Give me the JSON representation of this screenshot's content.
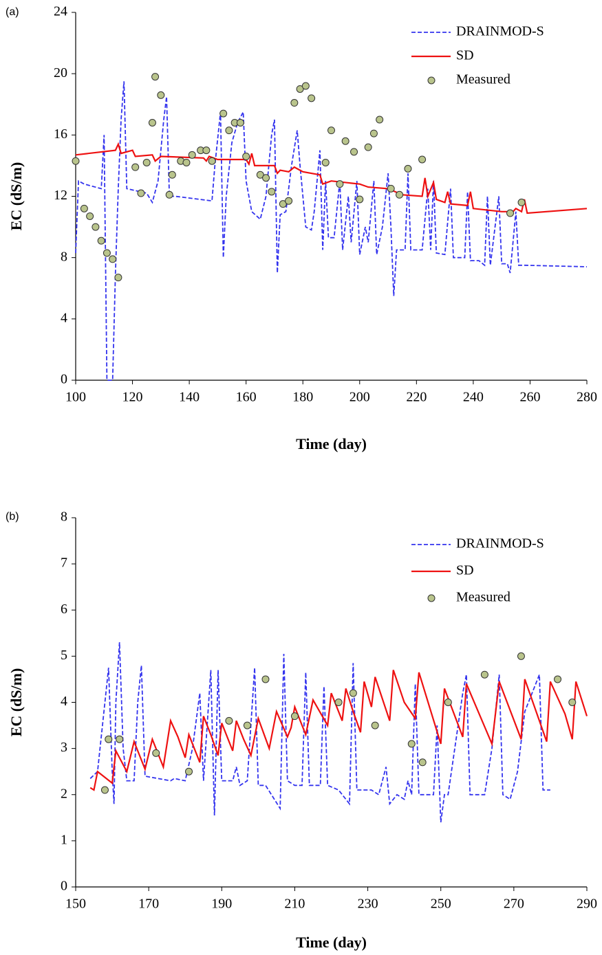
{
  "chart_data": [
    {
      "type": "line",
      "label": "(a)",
      "xlabel": "Time (day)",
      "ylabel": "EC (dS/m)",
      "legend": "upper right",
      "xlim": [
        100,
        280
      ],
      "xticks": [
        100,
        120,
        140,
        160,
        180,
        200,
        220,
        240,
        260,
        280
      ],
      "ylim": [
        0,
        24
      ],
      "yticks": [
        0,
        4,
        8,
        12,
        16,
        20,
        24
      ],
      "series": [
        {
          "name": "DRAINMOD-S",
          "color": "#3333ee",
          "style": "dashed",
          "x": [
            100,
            101,
            103,
            109,
            110,
            111,
            113,
            114,
            115,
            116,
            117,
            118,
            125,
            127,
            129,
            131,
            132,
            133,
            135,
            148,
            149,
            151,
            152,
            153,
            155,
            157,
            159,
            160,
            162,
            165,
            167,
            169,
            170,
            171,
            172,
            174,
            176,
            178,
            179,
            181,
            183,
            184,
            186,
            187,
            188,
            189,
            191,
            193,
            194,
            196,
            197,
            199,
            200,
            202,
            203,
            205,
            206,
            208,
            210,
            211,
            212,
            213,
            216,
            217,
            218,
            222,
            224,
            225,
            226,
            227,
            230,
            232,
            233,
            237,
            238,
            239,
            242,
            244,
            245,
            246,
            249,
            250,
            252,
            253,
            255,
            256,
            258,
            280
          ],
          "values": [
            8.3,
            13,
            12.8,
            12.5,
            16,
            0,
            0,
            7,
            12.5,
            17,
            19.5,
            12.5,
            12.2,
            11.6,
            13,
            17,
            18.5,
            12,
            12,
            11.7,
            14,
            17.5,
            8,
            12,
            15.5,
            16.8,
            17.5,
            13,
            11,
            10.5,
            12,
            16,
            17,
            7,
            10.8,
            11,
            14,
            16.3,
            14,
            10,
            9.8,
            11,
            15,
            8.5,
            13,
            9.3,
            9.3,
            13,
            8.5,
            12,
            9,
            13,
            8.2,
            10,
            9,
            13,
            8.2,
            10,
            13.5,
            10,
            5.5,
            8.5,
            8.5,
            13.5,
            8.5,
            8.5,
            12.5,
            8.5,
            13,
            8.3,
            8.2,
            12.5,
            8,
            8,
            12.3,
            7.8,
            7.8,
            7.5,
            12,
            7.5,
            12,
            7.6,
            7.6,
            7,
            11,
            7.5,
            7.5,
            7.4
          ]
        },
        {
          "name": "SD",
          "color": "#ee1111",
          "style": "solid",
          "x": [
            100,
            114,
            115,
            116,
            120,
            121,
            127,
            128,
            130,
            145,
            146,
            147,
            150,
            160,
            161,
            162,
            163,
            170,
            171,
            172,
            175,
            177,
            180,
            186,
            187,
            190,
            200,
            203,
            210,
            215,
            222,
            223,
            224,
            226,
            227,
            230,
            231,
            232,
            238,
            239,
            240,
            250,
            254,
            255,
            257,
            258,
            259,
            280
          ],
          "values": [
            14.7,
            15,
            15.4,
            14.8,
            15,
            14.6,
            14.7,
            14.3,
            14.6,
            14.5,
            14.3,
            14.6,
            14.4,
            14.4,
            14.1,
            14.8,
            14,
            14,
            13.5,
            13.7,
            13.6,
            13.9,
            13.6,
            13.4,
            12.8,
            13,
            12.8,
            12.6,
            12.5,
            12.1,
            12,
            13.2,
            12,
            12.9,
            11.8,
            11.6,
            12.3,
            11.5,
            11.4,
            12.3,
            11.2,
            11,
            11,
            11.2,
            11,
            11.8,
            10.9,
            11.2
          ]
        },
        {
          "name": "Measured",
          "color": "#b9c48c",
          "style": "marker",
          "x": [
            100,
            103,
            105,
            107,
            109,
            111,
            113,
            115,
            121,
            123,
            125,
            127,
            128,
            130,
            133,
            134,
            137,
            139,
            141,
            144,
            146,
            148,
            152,
            154,
            156,
            158,
            160,
            165,
            167,
            169,
            173,
            175,
            177,
            179,
            181,
            183,
            188,
            190,
            193,
            195,
            198,
            200,
            203,
            205,
            207,
            211,
            214,
            217,
            222,
            253,
            257
          ],
          "values": [
            14.3,
            11.2,
            10.7,
            10,
            9.1,
            8.3,
            7.9,
            6.7,
            13.9,
            12.2,
            14.2,
            16.8,
            19.8,
            18.6,
            12.1,
            13.4,
            14.3,
            14.2,
            14.7,
            15,
            15,
            14.3,
            17.4,
            16.3,
            16.8,
            16.8,
            14.6,
            13.4,
            13.2,
            12.3,
            11.5,
            11.7,
            18.1,
            19,
            19.2,
            18.4,
            14.2,
            16.3,
            12.8,
            15.6,
            14.9,
            11.8,
            15.2,
            16.1,
            17,
            12.5,
            12.1,
            13.8,
            14.4,
            10.9,
            11.6
          ]
        }
      ]
    },
    {
      "type": "line",
      "label": "(b)",
      "xlabel": "Time (day)",
      "ylabel": "EC (dS/m)",
      "legend": "upper right",
      "xlim": [
        150,
        290
      ],
      "xticks": [
        150,
        170,
        190,
        210,
        230,
        250,
        270,
        290
      ],
      "ylim": [
        0,
        8
      ],
      "yticks": [
        0,
        1,
        2,
        3,
        4,
        5,
        6,
        7,
        8
      ],
      "series": [
        {
          "name": "DRAINMOD-S",
          "color": "#3333ee",
          "style": "dashed",
          "x": [
            154,
            156,
            158,
            159,
            160,
            160.5,
            161,
            162,
            163,
            164,
            166,
            167,
            168,
            169,
            176,
            177,
            180,
            182,
            184,
            185,
            186,
            187,
            188,
            189,
            190,
            193,
            194,
            195,
            197,
            199,
            200,
            202,
            206,
            207,
            208,
            210,
            212,
            213,
            214,
            217,
            218,
            219,
            222,
            225,
            226,
            227,
            231,
            233,
            235,
            236,
            238,
            240,
            241,
            242,
            243,
            244,
            246,
            248,
            249,
            250,
            251,
            252,
            256,
            257,
            258,
            262,
            264,
            266,
            267,
            269,
            271,
            273,
            277,
            278,
            280
          ],
          "values": [
            2.35,
            2.5,
            4,
            4.75,
            2.5,
            1.8,
            4,
            5.3,
            3,
            2.3,
            2.3,
            4,
            4.8,
            2.4,
            2.3,
            2.35,
            2.3,
            3,
            4.2,
            2.3,
            3.5,
            4.7,
            1.55,
            4.7,
            2.3,
            2.3,
            2.6,
            2.2,
            2.3,
            4.75,
            2.2,
            2.2,
            1.7,
            5.05,
            2.3,
            2.2,
            2.2,
            4.65,
            2.2,
            2.2,
            4.35,
            2.2,
            2.1,
            1.8,
            4.85,
            2.1,
            2.1,
            2,
            2.6,
            1.8,
            2,
            1.9,
            2.3,
            2,
            4.4,
            2,
            2,
            2,
            3.5,
            1.4,
            2,
            2,
            4.2,
            4.6,
            2,
            2,
            3,
            4.6,
            2,
            1.9,
            2.5,
            3.8,
            4.6,
            2.1,
            2.1
          ]
        },
        {
          "name": "SD",
          "color": "#ee1111",
          "style": "solid",
          "x": [
            154,
            155,
            156,
            160,
            161,
            164,
            166,
            169,
            171,
            174,
            176,
            178,
            180,
            181,
            184,
            185,
            187,
            189,
            190,
            193,
            194,
            196,
            198,
            200,
            203,
            205,
            208,
            209,
            210,
            213,
            215,
            219,
            220,
            223,
            224,
            226,
            228,
            229,
            231,
            232,
            236,
            237,
            240,
            243,
            244,
            250,
            251,
            256,
            257,
            264,
            266,
            272,
            273,
            279,
            280,
            284,
            286,
            287,
            290
          ],
          "values": [
            2.15,
            2.1,
            2.5,
            2.25,
            2.95,
            2.5,
            3.15,
            2.55,
            3.2,
            2.6,
            3.6,
            3.25,
            2.8,
            3.3,
            2.7,
            3.7,
            3.3,
            2.85,
            3.55,
            2.95,
            3.6,
            3.2,
            2.85,
            3.65,
            3,
            3.8,
            3.25,
            3.45,
            3.9,
            3.3,
            4.05,
            3.5,
            4.2,
            3.6,
            4.3,
            3.8,
            3.35,
            4.45,
            3.9,
            4.55,
            3.6,
            4.7,
            4,
            3.65,
            4.65,
            3.1,
            4.3,
            3.25,
            4.4,
            3.1,
            4.45,
            3.2,
            4.5,
            3.15,
            4.45,
            3.75,
            3.2,
            4.45,
            3.7
          ]
        },
        {
          "name": "Measured",
          "color": "#b9c48c",
          "style": "marker",
          "x": [
            158,
            159,
            162,
            172,
            181,
            192,
            197,
            202,
            210,
            222,
            226,
            232,
            242,
            245,
            252,
            262,
            272,
            282,
            286
          ],
          "values": [
            2.1,
            3.2,
            3.2,
            2.9,
            2.5,
            3.6,
            3.5,
            4.5,
            3.7,
            4,
            4.2,
            3.5,
            3.1,
            2.7,
            4,
            4.6,
            5,
            4.5,
            4
          ]
        }
      ]
    }
  ]
}
